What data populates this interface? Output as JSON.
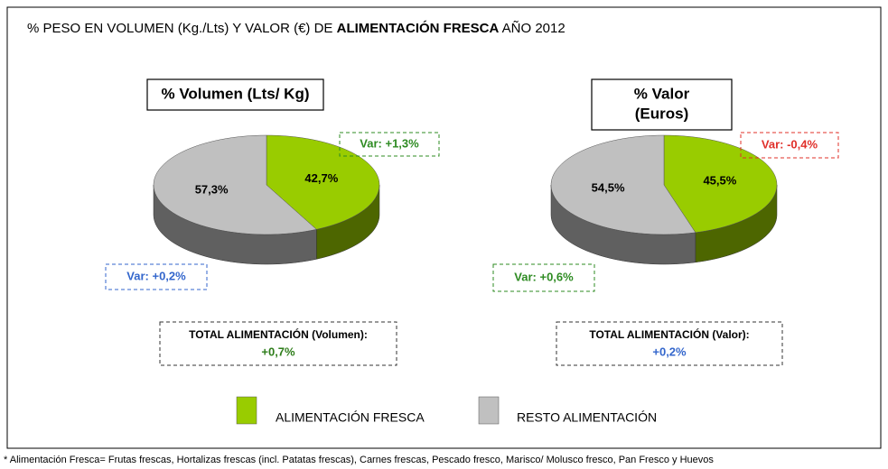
{
  "title": [
    "% PESO EN VOLUMEN  (Kg./Lts) Y VALOR (€) DE ",
    "ALIMENTACIÓN FRESCA",
    " AÑO 2012"
  ],
  "legend": {
    "categories": [
      "ALIMENTACIÓN FRESCA",
      "RESTO ALIMENTACIÓN"
    ],
    "colors": [
      "#99cc00",
      "#c0c0c0"
    ]
  },
  "footnote": "* Alimentación Fresca= Frutas frescas, Hortalizas frescas (incl. Patatas frescas), Carnes frescas, Pescado fresco, Marisco/ Molusco fresco, Pan Fresco y Huevos",
  "chart_data": [
    {
      "type": "pie",
      "title": [
        "% Volumen (Lts/ Kg)"
      ],
      "values": [
        42.7,
        57.3
      ],
      "value_labels": [
        "42,7%",
        "57,3%"
      ],
      "annotations": [
        {
          "text": "Var: +1,3%",
          "color": "#2e8b22"
        },
        {
          "text": "Var: +0,2%",
          "color": "#3366cc"
        }
      ],
      "total_label": "TOTAL ALIMENTACIÓN (Volumen):",
      "total_value": "+0,7%",
      "total_color": "#2e7d1a"
    },
    {
      "type": "pie",
      "title": [
        "% Valor",
        "(Euros)"
      ],
      "values": [
        45.5,
        54.5
      ],
      "value_labels": [
        "45,5%",
        "54,5%"
      ],
      "annotations": [
        {
          "text": "Var: -0,4%",
          "color": "#e0302a"
        },
        {
          "text": "Var: +0,6%",
          "color": "#2e8b22"
        }
      ],
      "total_label": "TOTAL ALIMENTACIÓN (Valor):",
      "total_value": "+0,2%",
      "total_color": "#3366cc"
    }
  ]
}
